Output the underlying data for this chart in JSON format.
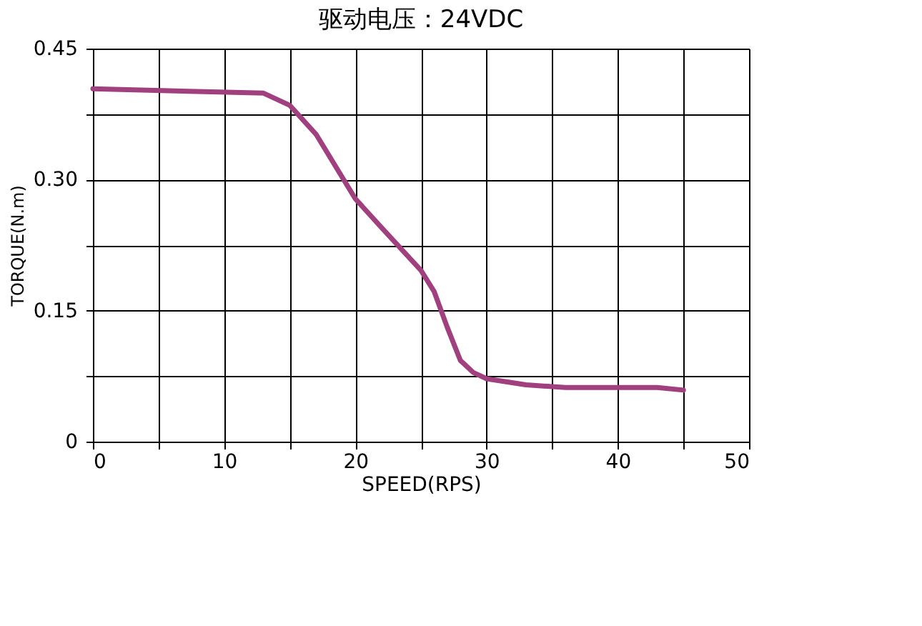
{
  "chart_data": {
    "type": "line",
    "title": "驱动电压：24VDC",
    "xlabel": "SPEED(RPS)",
    "ylabel": "TORQUE(N.m)",
    "x": [
      0,
      13,
      15,
      17,
      20,
      22,
      25,
      26,
      27,
      28,
      29,
      30,
      33,
      36,
      40,
      43,
      45
    ],
    "series": [
      {
        "color": "#a0407f",
        "values": [
          0.404,
          0.399,
          0.385,
          0.352,
          0.278,
          0.245,
          0.196,
          0.172,
          0.131,
          0.093,
          0.079,
          0.072,
          0.065,
          0.062,
          0.062,
          0.062,
          0.059
        ]
      }
    ],
    "xlim": [
      0,
      50
    ],
    "xticks": [
      0,
      {
        "value": 5,
        "label": null
      },
      10,
      {
        "value": 15,
        "label": null
      },
      20,
      {
        "value": 25,
        "label": null
      },
      30,
      {
        "value": 35,
        "label": null
      },
      40,
      {
        "value": 45,
        "label": null
      },
      50
    ],
    "ylim": [
      0,
      0.45
    ],
    "yticks": [
      0,
      {
        "value": 0.075,
        "label": null
      },
      {
        "value": 0.15,
        "label": "0.15"
      },
      {
        "value": 0.225,
        "label": null
      },
      {
        "value": 0.3,
        "label": "0.30"
      },
      {
        "value": 0.375,
        "label": null
      },
      {
        "value": 0.45,
        "label": "0.45"
      }
    ],
    "grid": true,
    "marker": "none",
    "line_style": "solid"
  }
}
